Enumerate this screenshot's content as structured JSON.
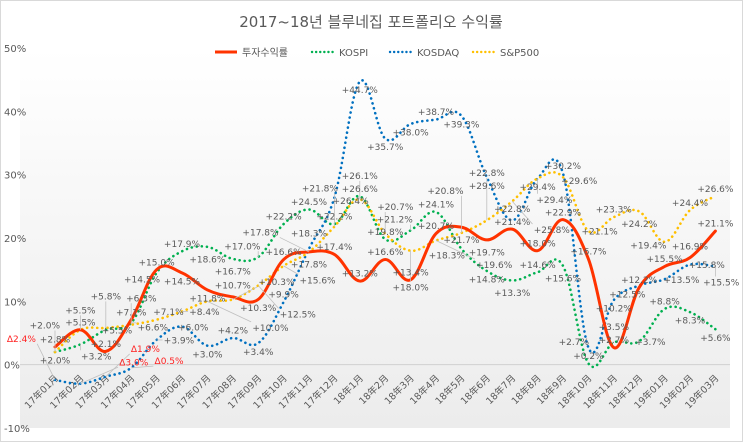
{
  "chart_data": {
    "type": "line",
    "title": "2017~18년 블루네집 포트폴리오 수익률",
    "xlabel": "",
    "ylabel": "",
    "ylim": [
      -10,
      50
    ],
    "yticks": [
      "50%",
      "40%",
      "30%",
      "20%",
      "10%",
      "0%",
      "-10%"
    ],
    "ytick_values": [
      50,
      40,
      30,
      20,
      10,
      0,
      -10
    ],
    "grid": "zero line only",
    "legend": "top",
    "smooth": true,
    "negative_prefix": "Δ",
    "negative_label_color": "#ff2020",
    "categories": [
      "17年01月",
      "17年02月",
      "17年03月",
      "17年04月",
      "17年05月",
      "17年06月",
      "17年07月",
      "17年08月",
      "17年09月",
      "17年10月",
      "17年11月",
      "17年12月",
      "18年1月",
      "18年2月",
      "18年3月",
      "18年4月",
      "18年5月",
      "18年6月",
      "18年7月",
      "18年8月",
      "18年9月",
      "18年10月",
      "18年11月",
      "18年12月",
      "19年01月",
      "19年02月",
      "19年03月"
    ],
    "series": [
      {
        "name": "투자수익률",
        "color": "#ff3300",
        "style": "solid",
        "values": [
          2.8,
          5.5,
          2.1,
          7.1,
          15.0,
          14.5,
          11.8,
          10.7,
          10.3,
          16.6,
          17.8,
          17.4,
          13.2,
          16.6,
          13.4,
          20.7,
          21.7,
          19.7,
          21.4,
          18.0,
          22.9,
          16.7,
          2.7,
          12.2,
          15.5,
          16.9,
          21.1
        ]
      },
      {
        "name": "KOSPI",
        "color": "#00b050",
        "style": "dotted",
        "values": [
          2.0,
          3.2,
          5.5,
          6.6,
          14.5,
          17.9,
          18.6,
          16.7,
          17.0,
          22.2,
          24.5,
          22.2,
          26.6,
          19.8,
          21.2,
          24.1,
          18.3,
          14.8,
          13.3,
          14.6,
          15.6,
          0.2,
          3.5,
          3.7,
          8.8,
          8.3,
          5.6
        ]
      },
      {
        "name": "KOSDAQ",
        "color": "#0070c0",
        "style": "dotted",
        "values": [
          -2.4,
          -3.0,
          -1.9,
          -0.5,
          3.9,
          6.0,
          3.0,
          4.2,
          3.4,
          9.9,
          18.3,
          26.4,
          44.7,
          35.7,
          38.0,
          38.7,
          39.3,
          29.6,
          22.8,
          29.4,
          30.2,
          2.7,
          10.2,
          12.5,
          13.5,
          15.8,
          15.5
        ]
      },
      {
        "name": "S&P500",
        "color": "#ffc000",
        "style": "dotted",
        "values": [
          2.0,
          5.5,
          5.8,
          6.3,
          7.1,
          8.4,
          10.0,
          10.3,
          12.5,
          15.6,
          17.8,
          21.8,
          26.1,
          20.7,
          18.0,
          19.6,
          20.8,
          22.8,
          25.8,
          29.4,
          29.6,
          21.1,
          23.3,
          24.2,
          19.4,
          24.4,
          26.6
        ]
      }
    ]
  }
}
